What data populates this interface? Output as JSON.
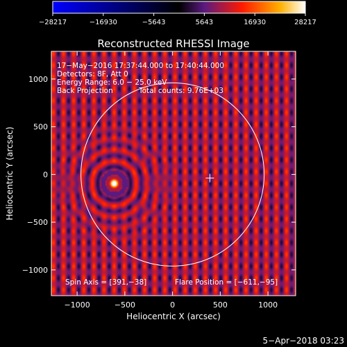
{
  "chart_data": {
    "type": "heatmap",
    "title": "Reconstructed RHESSI Image",
    "xlabel": "Heliocentric X (arcsec)",
    "ylabel": "Heliocentric Y (arcsec)",
    "xlim": [
      -1270,
      1290
    ],
    "ylim": [
      -1270,
      1290
    ],
    "x_ticks": [
      -1000,
      -500,
      0,
      500,
      1000
    ],
    "y_ticks": [
      -1000,
      -500,
      0,
      500,
      1000
    ],
    "x_tick_labels": [
      "−1000",
      "−500",
      "0",
      "500",
      "1000"
    ],
    "y_tick_labels": [
      "−1000",
      "−500",
      "0",
      "500",
      "1000"
    ],
    "colorbar": {
      "range": [
        -28217,
        28217
      ],
      "ticks": [
        -28217,
        -16930,
        -5643,
        5643,
        16930,
        28217
      ],
      "tick_labels": [
        "−28217",
        "−16930",
        "−5643",
        "5643",
        "16930",
        "28217"
      ],
      "colors": [
        "#0000ff",
        "#000000",
        "#5a1a80",
        "#ff1a00",
        "#ffb000",
        "#ffffff"
      ]
    },
    "info_lines": [
      "17−May−2016 17:37:44.000 to 17:40:44.000",
      "Detectors: 8F, Att 0",
      "Energy Range: 6.0 − 25.0 keV",
      "Back Projection"
    ],
    "total_counts": "Total counts: 9.76E+03",
    "spin_axis": "Spin Axis = [391,−38]",
    "flare_position_label": "Flare Position = [−611,−95]",
    "flare_position": [
      -611,
      -95
    ],
    "spin_axis_position": [
      391,
      -38
    ],
    "solar_limb": {
      "center": [
        0,
        0
      ],
      "radius_arcsec": 960
    },
    "peak_value": 28217
  },
  "footer": {
    "timestamp": "5−Apr−2018 03:23"
  }
}
